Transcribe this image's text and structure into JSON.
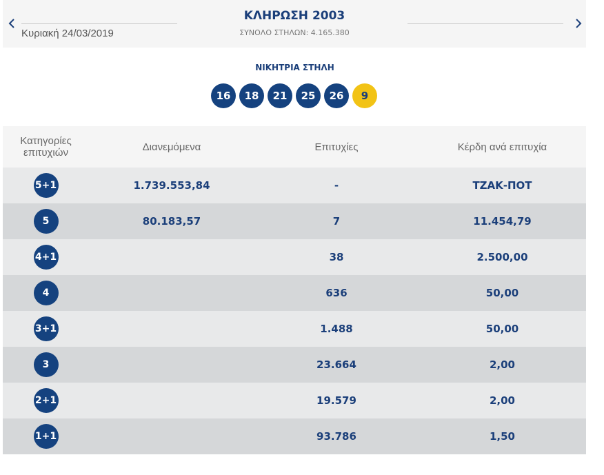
{
  "header": {
    "date": "Κυριακή 24/03/2019",
    "draw_title": "ΚΛΗΡΩΣΗ 2003",
    "total_columns": "ΣΥΝΟΛΟ ΣΤΗΛΩΝ: 4.165.380"
  },
  "winning": {
    "label": "ΝΙΚΗΤΡΙΑ ΣΤΗΛΗ",
    "numbers": [
      "16",
      "18",
      "21",
      "25",
      "26"
    ],
    "joker": "9"
  },
  "colors": {
    "primary": "#15427f",
    "joker": "#f2c315",
    "row_light": "#e8e9ea",
    "row_dark": "#d5d7d9"
  },
  "table": {
    "headers": [
      "Κατηγορίες επιτυχιών",
      "Διανεμόμενα",
      "Επιτυχίες",
      "Κέρδη ανά επιτυχία"
    ],
    "rows": [
      {
        "category": "5+1",
        "distributed": "1.739.553,84",
        "winners": "-",
        "prize": "ΤΖΑΚ-ΠΟΤ"
      },
      {
        "category": "5",
        "distributed": "80.183,57",
        "winners": "7",
        "prize": "11.454,79"
      },
      {
        "category": "4+1",
        "distributed": "",
        "winners": "38",
        "prize": "2.500,00"
      },
      {
        "category": "4",
        "distributed": "",
        "winners": "636",
        "prize": "50,00"
      },
      {
        "category": "3+1",
        "distributed": "",
        "winners": "1.488",
        "prize": "50,00"
      },
      {
        "category": "3",
        "distributed": "",
        "winners": "23.664",
        "prize": "2,00"
      },
      {
        "category": "2+1",
        "distributed": "",
        "winners": "19.579",
        "prize": "2,00"
      },
      {
        "category": "1+1",
        "distributed": "",
        "winners": "93.786",
        "prize": "1,50"
      }
    ]
  }
}
